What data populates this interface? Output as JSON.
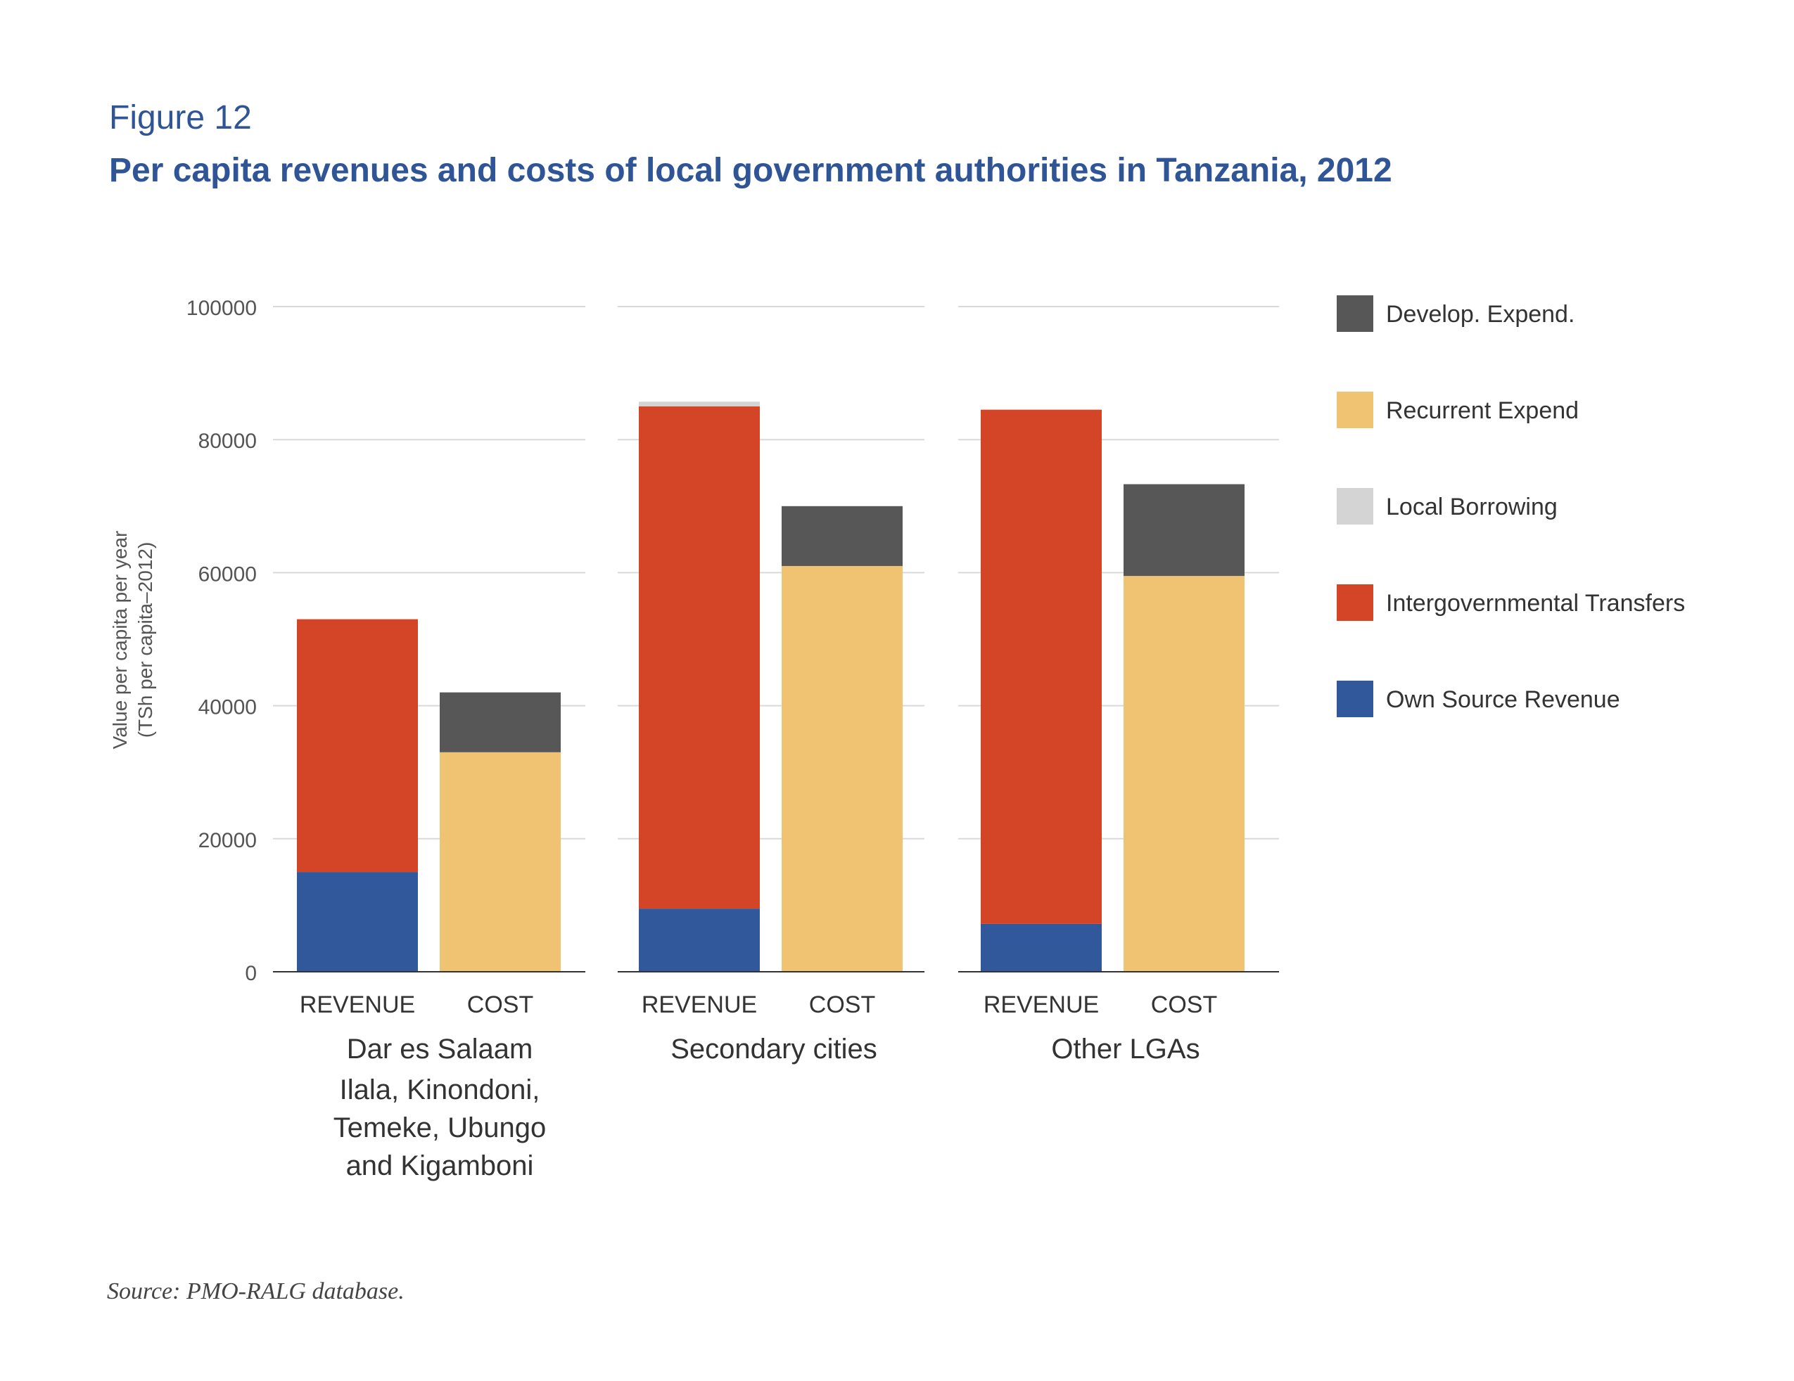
{
  "figure_label": "Figure 12",
  "title": "Per capita revenues and costs of local government authorities in Tanzania, 2012",
  "source": "Source: PMO-RALG database.",
  "chart_data": {
    "type": "bar",
    "stacked": true,
    "ylabel_line1": "Value per capita per year",
    "ylabel_line2": "(TSh per capita–2012)",
    "ylim": [
      0,
      100000
    ],
    "yticks": [
      "0",
      "20000",
      "40000",
      "60000",
      "80000",
      "100000"
    ],
    "grid": true,
    "legend_position": "right",
    "groups": [
      {
        "name": "Dar es Salaam",
        "subtitle": [
          "Ilala, Kinondoni,",
          "Temeke, Ubungo",
          "and Kigamboni"
        ],
        "bars": [
          {
            "label": "REVENUE",
            "segments": {
              "Own Source Revenue": 15000,
              "Intergovernmental Transfers": 38000,
              "Local Borrowing": 0
            }
          },
          {
            "label": "COST",
            "segments": {
              "Recurrent Expend": 33000,
              "Develop. Expend.": 9000
            }
          }
        ]
      },
      {
        "name": "Secondary cities",
        "subtitle": [],
        "bars": [
          {
            "label": "REVENUE",
            "segments": {
              "Own Source Revenue": 9500,
              "Intergovernmental Transfers": 75500,
              "Local Borrowing": 700
            }
          },
          {
            "label": "COST",
            "segments": {
              "Recurrent Expend": 61000,
              "Develop. Expend.": 9000
            }
          }
        ]
      },
      {
        "name": "Other LGAs",
        "subtitle": [],
        "bars": [
          {
            "label": "REVENUE",
            "segments": {
              "Own Source Revenue": 7200,
              "Intergovernmental Transfers": 77300,
              "Local Borrowing": 0
            }
          },
          {
            "label": "COST",
            "segments": {
              "Recurrent Expend": 59500,
              "Develop. Expend.": 13800
            }
          }
        ]
      }
    ],
    "legend": [
      {
        "name": "Develop. Expend.",
        "color": "#575757"
      },
      {
        "name": "Recurrent Expend",
        "color": "#f0c373"
      },
      {
        "name": "Local Borrowing",
        "color": "#d4d4d4"
      },
      {
        "name": "Intergovernmental Transfers",
        "color": "#d44527"
      },
      {
        "name": "Own Source Revenue",
        "color": "#30589a"
      }
    ]
  }
}
